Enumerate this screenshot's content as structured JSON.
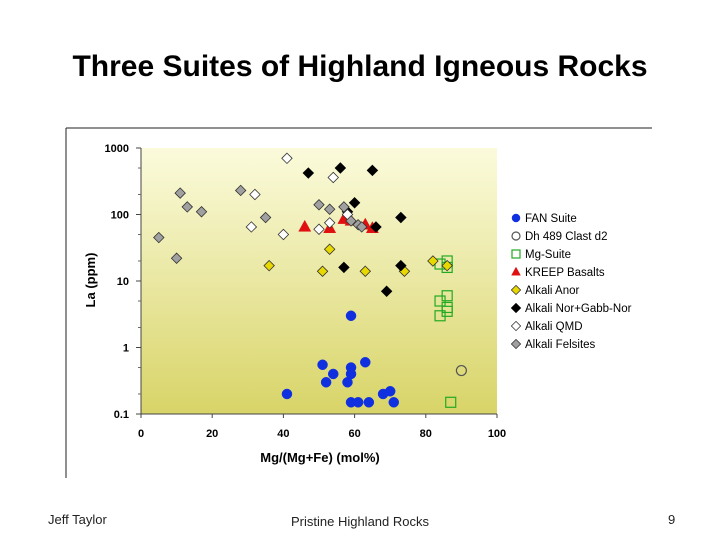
{
  "slide": {
    "title": "Three Suites of Highland Igneous Rocks",
    "author": "Jeff Taylor",
    "center_text": "Pristine Highland Rocks",
    "page_number": "9"
  },
  "chart_data": {
    "type": "scatter",
    "xlabel": "Mg/(Mg+Fe) (mol%)",
    "ylabel": "La (ppm)",
    "xlim": [
      0,
      100
    ],
    "ylim": [
      0.1,
      1000
    ],
    "yscale": "log",
    "xticks": [
      "0",
      "20",
      "40",
      "60",
      "80",
      "100"
    ],
    "yticks": [
      "0.1",
      "1",
      "10",
      "100",
      "1000"
    ],
    "grid": false,
    "legend_position": "right",
    "colors": {
      "plot_bg_top": "#fbfbdc",
      "plot_bg_bottom": "#d8d468"
    },
    "series": [
      {
        "name": "FAN Suite",
        "marker": "circle",
        "color": "#1030e0",
        "fill": true,
        "points": [
          [
            41,
            0.2
          ],
          [
            51,
            0.55
          ],
          [
            52,
            0.3
          ],
          [
            54,
            0.4
          ],
          [
            58,
            0.3
          ],
          [
            59,
            0.4
          ],
          [
            59,
            0.5
          ],
          [
            59,
            3.0
          ],
          [
            59,
            0.15
          ],
          [
            61,
            0.15
          ],
          [
            63,
            0.6
          ],
          [
            64,
            0.15
          ],
          [
            68,
            0.2
          ],
          [
            70,
            0.22
          ],
          [
            71,
            0.15
          ]
        ]
      },
      {
        "name": "Dh 489 Clast d2",
        "marker": "circle",
        "color": "#555555",
        "fill": false,
        "points": [
          [
            90,
            0.45
          ]
        ]
      },
      {
        "name": "Mg-Suite",
        "marker": "square",
        "color": "#22aa22",
        "fill": false,
        "points": [
          [
            84,
            18
          ],
          [
            86,
            20
          ],
          [
            86,
            16
          ],
          [
            84,
            5
          ],
          [
            86,
            6
          ],
          [
            86,
            4
          ],
          [
            84,
            3
          ],
          [
            86,
            3.5
          ],
          [
            87,
            0.15
          ]
        ]
      },
      {
        "name": "KREEP Basalts",
        "marker": "triangle",
        "color": "#e01010",
        "fill": true,
        "points": [
          [
            46,
            65
          ],
          [
            53,
            62
          ],
          [
            57,
            85
          ],
          [
            59,
            80
          ],
          [
            63,
            70
          ],
          [
            65,
            62
          ]
        ]
      },
      {
        "name": "Alkali Anor",
        "marker": "diamond",
        "color": "#e8d800",
        "fill": true,
        "points": [
          [
            36,
            17
          ],
          [
            51,
            14
          ],
          [
            53,
            30
          ],
          [
            63,
            14
          ],
          [
            74,
            14
          ],
          [
            82,
            20
          ],
          [
            86,
            17
          ]
        ]
      },
      {
        "name": "Alkali Nor+Gabb-Nor",
        "marker": "diamond",
        "color": "#000000",
        "fill": true,
        "points": [
          [
            47,
            420
          ],
          [
            56,
            500
          ],
          [
            57,
            16
          ],
          [
            58,
            110
          ],
          [
            60,
            150
          ],
          [
            65,
            460
          ],
          [
            66,
            65
          ],
          [
            73,
            90
          ],
          [
            73,
            17
          ],
          [
            69,
            7
          ]
        ]
      },
      {
        "name": "Alkali QMD",
        "marker": "diamond",
        "color": "#ffffff",
        "fill": true,
        "points": [
          [
            31,
            65
          ],
          [
            32,
            200
          ],
          [
            40,
            50
          ],
          [
            41,
            700
          ],
          [
            50,
            60
          ],
          [
            53,
            75
          ],
          [
            54,
            360
          ],
          [
            58,
            100
          ]
        ]
      },
      {
        "name": "Alkali Felsites",
        "marker": "diamond",
        "color": "#a0a0a0",
        "fill": true,
        "points": [
          [
            5,
            45
          ],
          [
            10,
            22
          ],
          [
            11,
            210
          ],
          [
            13,
            130
          ],
          [
            17,
            110
          ],
          [
            28,
            230
          ],
          [
            35,
            90
          ],
          [
            50,
            140
          ],
          [
            53,
            120
          ],
          [
            57,
            130
          ],
          [
            59,
            80
          ],
          [
            61,
            70
          ],
          [
            62,
            65
          ]
        ]
      }
    ]
  }
}
